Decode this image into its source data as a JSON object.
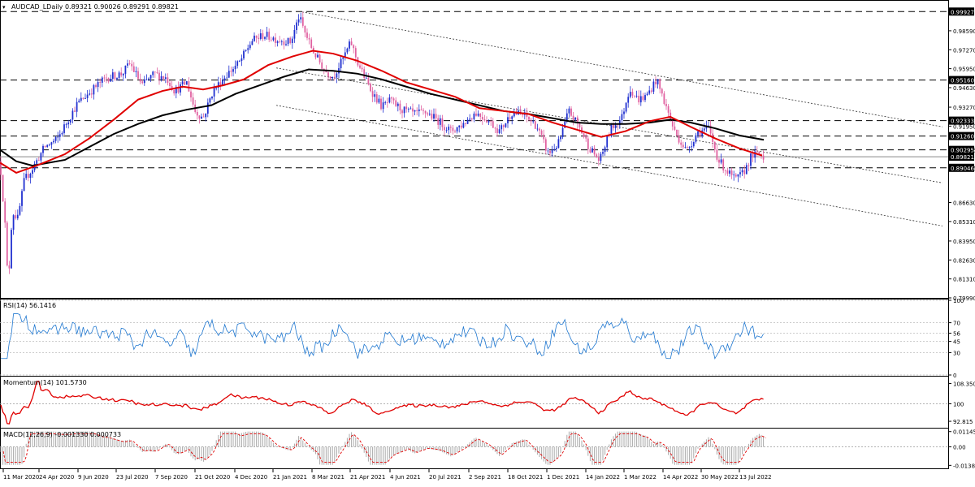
{
  "chart_data": {
    "type": "candlestick",
    "title": "AUDCAD_LDaily  0.89321 0.90026 0.89291 0.89821",
    "symbol": "AUDCAD_LDaily",
    "ohlc_last": {
      "open": 0.89321,
      "high": 0.90026,
      "low": 0.89291,
      "close": 0.89821
    },
    "x_labels": [
      "11 Mar 2020",
      "24 Apr 2020",
      "9 Jun 2020",
      "23 Jul 2020",
      "7 Sep 2020",
      "21 Oct 2020",
      "4 Dec 2020",
      "21 Jan 2021",
      "8 Mar 2021",
      "21 Apr 2021",
      "4 Jun 2021",
      "20 Jul 2021",
      "2 Sep 2021",
      "18 Oct 2021",
      "1 Dec 2021",
      "14 Jan 2022",
      "1 Mar 2022",
      "14 Apr 2022",
      "30 May 2022",
      "13 Jul 2022"
    ],
    "price_axis": {
      "ticks": [
        "0.98590",
        "0.97270",
        "0.95950",
        "0.94630",
        "0.93270",
        "0.91950",
        "0.90295",
        "0.89046",
        "0.86630",
        "0.85310",
        "0.83950",
        "0.82630",
        "0.81310",
        "0.79990"
      ],
      "ylim": [
        0.7999,
        1.0062
      ],
      "levels": [
        {
          "value": 0.99927,
          "label": "0.99927",
          "color": "#000000",
          "style": "dashed"
        },
        {
          "value": 0.9516,
          "label": "0.95160",
          "color": "#000000",
          "style": "dashed"
        },
        {
          "value": 0.92333,
          "label": "0.92333",
          "color": "#000000",
          "style": "dashed"
        },
        {
          "value": 0.9126,
          "label": "0.91260",
          "color": "#000000",
          "style": "dashed"
        },
        {
          "value": 0.90295,
          "label": "0.90295",
          "color": "#000000",
          "style": "dashed"
        },
        {
          "value": 0.89821,
          "label": "0.89821",
          "color": "#000000",
          "style": "solid"
        },
        {
          "value": 0.89046,
          "label": "0.89046",
          "color": "#000000",
          "style": "dashed"
        }
      ]
    },
    "ma_fast": {
      "name": "MA red",
      "color": "#e00000",
      "points": [
        [
          0,
          0.894
        ],
        [
          20,
          0.887
        ],
        [
          45,
          0.892
        ],
        [
          80,
          0.9
        ],
        [
          110,
          0.911
        ],
        [
          140,
          0.924
        ],
        [
          170,
          0.938
        ],
        [
          200,
          0.944
        ],
        [
          225,
          0.947
        ],
        [
          250,
          0.945
        ],
        [
          275,
          0.948
        ],
        [
          300,
          0.952
        ],
        [
          330,
          0.962
        ],
        [
          360,
          0.968
        ],
        [
          385,
          0.972
        ],
        [
          410,
          0.97
        ],
        [
          440,
          0.965
        ],
        [
          470,
          0.958
        ],
        [
          500,
          0.95
        ],
        [
          530,
          0.945
        ],
        [
          560,
          0.94
        ],
        [
          590,
          0.932
        ],
        [
          620,
          0.93
        ],
        [
          650,
          0.928
        ],
        [
          680,
          0.922
        ],
        [
          710,
          0.917
        ],
        [
          740,
          0.912
        ],
        [
          770,
          0.916
        ],
        [
          800,
          0.923
        ],
        [
          825,
          0.926
        ],
        [
          850,
          0.919
        ],
        [
          880,
          0.911
        ],
        [
          910,
          0.904
        ],
        [
          938,
          0.899
        ]
      ]
    },
    "ma_slow": {
      "name": "MA black",
      "color": "#000000",
      "points": [
        [
          0,
          0.903
        ],
        [
          20,
          0.895
        ],
        [
          40,
          0.892
        ],
        [
          80,
          0.896
        ],
        [
          110,
          0.905
        ],
        [
          140,
          0.914
        ],
        [
          170,
          0.921
        ],
        [
          200,
          0.927
        ],
        [
          230,
          0.931
        ],
        [
          260,
          0.934
        ],
        [
          290,
          0.942
        ],
        [
          320,
          0.948
        ],
        [
          350,
          0.954
        ],
        [
          380,
          0.959
        ],
        [
          410,
          0.958
        ],
        [
          440,
          0.956
        ],
        [
          470,
          0.952
        ],
        [
          500,
          0.947
        ],
        [
          530,
          0.942
        ],
        [
          560,
          0.938
        ],
        [
          590,
          0.934
        ],
        [
          620,
          0.93
        ],
        [
          650,
          0.928
        ],
        [
          680,
          0.925
        ],
        [
          710,
          0.922
        ],
        [
          740,
          0.921
        ],
        [
          770,
          0.921
        ],
        [
          800,
          0.922
        ],
        [
          825,
          0.924
        ],
        [
          850,
          0.922
        ],
        [
          880,
          0.918
        ],
        [
          910,
          0.913
        ],
        [
          940,
          0.91
        ]
      ]
    },
    "channel_lines": [
      {
        "from": [
          372,
          0.999
        ],
        "to": [
          1160,
          0.919
        ]
      },
      {
        "from": [
          340,
          0.96
        ],
        "to": [
          1160,
          0.88
        ]
      },
      {
        "from": [
          340,
          0.934
        ],
        "to": [
          1160,
          0.85
        ]
      }
    ],
    "price_path_keypoints": [
      [
        0,
        0.895
      ],
      [
        6,
        0.853
      ],
      [
        10,
        0.807
      ],
      [
        15,
        0.86
      ],
      [
        22,
        0.855
      ],
      [
        30,
        0.882
      ],
      [
        40,
        0.89
      ],
      [
        55,
        0.905
      ],
      [
        70,
        0.91
      ],
      [
        85,
        0.925
      ],
      [
        95,
        0.935
      ],
      [
        110,
        0.943
      ],
      [
        130,
        0.953
      ],
      [
        150,
        0.956
      ],
      [
        160,
        0.963
      ],
      [
        175,
        0.948
      ],
      [
        190,
        0.956
      ],
      [
        205,
        0.953
      ],
      [
        215,
        0.944
      ],
      [
        230,
        0.95
      ],
      [
        240,
        0.93
      ],
      [
        250,
        0.925
      ],
      [
        262,
        0.944
      ],
      [
        280,
        0.956
      ],
      [
        295,
        0.964
      ],
      [
        310,
        0.979
      ],
      [
        325,
        0.983
      ],
      [
        340,
        0.98
      ],
      [
        358,
        0.978
      ],
      [
        368,
        0.996
      ],
      [
        375,
        0.985
      ],
      [
        385,
        0.972
      ],
      [
        400,
        0.958
      ],
      [
        410,
        0.954
      ],
      [
        420,
        0.964
      ],
      [
        432,
        0.978
      ],
      [
        440,
        0.964
      ],
      [
        455,
        0.946
      ],
      [
        470,
        0.933
      ],
      [
        480,
        0.937
      ],
      [
        495,
        0.931
      ],
      [
        510,
        0.928
      ],
      [
        525,
        0.929
      ],
      [
        540,
        0.923
      ],
      [
        555,
        0.916
      ],
      [
        570,
        0.921
      ],
      [
        585,
        0.929
      ],
      [
        600,
        0.924
      ],
      [
        615,
        0.916
      ],
      [
        630,
        0.929
      ],
      [
        645,
        0.927
      ],
      [
        660,
        0.92
      ],
      [
        675,
        0.9
      ],
      [
        688,
        0.908
      ],
      [
        700,
        0.93
      ],
      [
        712,
        0.92
      ],
      [
        725,
        0.905
      ],
      [
        738,
        0.895
      ],
      [
        752,
        0.918
      ],
      [
        765,
        0.925
      ],
      [
        775,
        0.946
      ],
      [
        785,
        0.938
      ],
      [
        795,
        0.94
      ],
      [
        808,
        0.952
      ],
      [
        818,
        0.936
      ],
      [
        830,
        0.916
      ],
      [
        845,
        0.902
      ],
      [
        858,
        0.915
      ],
      [
        872,
        0.918
      ],
      [
        884,
        0.896
      ],
      [
        895,
        0.888
      ],
      [
        905,
        0.882
      ],
      [
        915,
        0.887
      ],
      [
        925,
        0.899
      ],
      [
        935,
        0.9
      ],
      [
        940,
        0.8982
      ]
    ],
    "rsi": {
      "label": "RSI(14) 56.1416",
      "ticks": [
        "100",
        "70",
        "56",
        "45",
        "30",
        "0"
      ],
      "ylim": [
        0,
        100
      ],
      "color": "#1f77d0"
    },
    "momentum": {
      "label": "Momentum(14) 101.5730",
      "ticks": [
        "108.3504",
        "100",
        "92.815"
      ],
      "ylim": [
        90.5,
        110.5
      ],
      "color": "#e00000"
    },
    "macd": {
      "label": "MACD(12,26,9) -0.001330 0.000733",
      "ticks": [
        "0.011452",
        "0.00",
        "-0.013876"
      ],
      "ylim": [
        -0.0155,
        0.0125
      ],
      "signal_color": "#e00000",
      "hist_color": "#aaaaaa"
    },
    "colors": {
      "bull": "#2030d0",
      "bear": "#e060a0",
      "grid": "#c0c0c0"
    }
  }
}
